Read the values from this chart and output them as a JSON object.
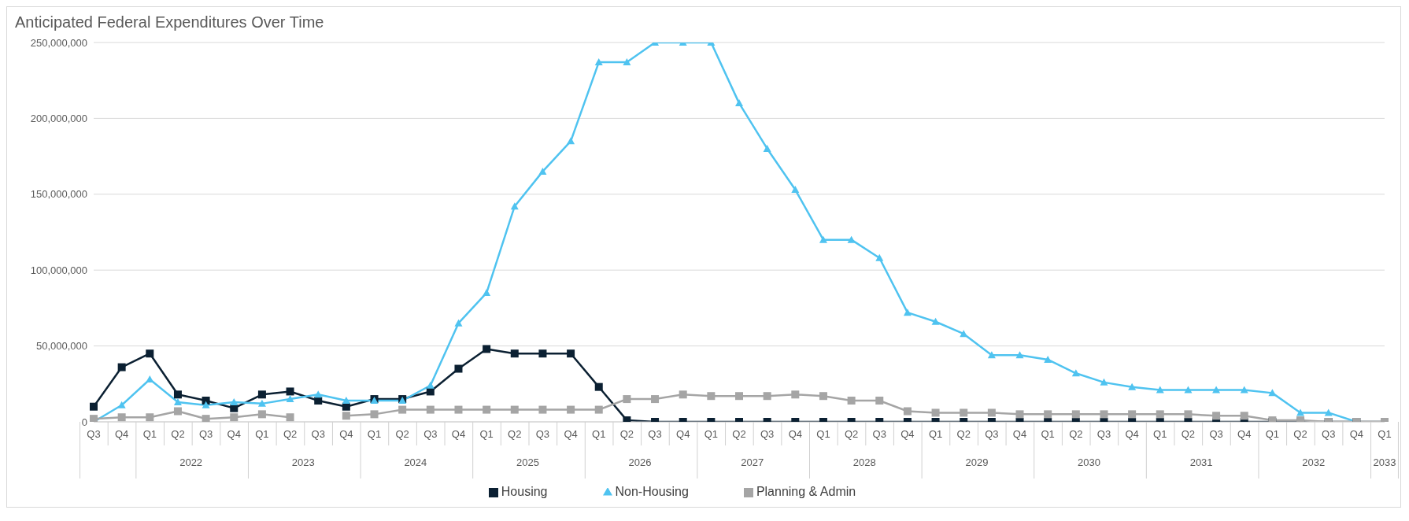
{
  "chart_data": {
    "type": "line",
    "title": "Anticipated Federal Expenditures Over Time",
    "categories": [
      "Q3",
      "Q4",
      "Q1",
      "Q2",
      "Q3",
      "Q4",
      "Q1",
      "Q2",
      "Q3",
      "Q4",
      "Q1",
      "Q2",
      "Q3",
      "Q4",
      "Q1",
      "Q2",
      "Q3",
      "Q4",
      "Q1",
      "Q2",
      "Q3",
      "Q4",
      "Q1",
      "Q2",
      "Q3",
      "Q4",
      "Q1",
      "Q2",
      "Q3",
      "Q4",
      "Q1",
      "Q2",
      "Q3",
      "Q4",
      "Q1",
      "Q2",
      "Q3",
      "Q4",
      "Q1",
      "Q2",
      "Q3",
      "Q4",
      "Q1",
      "Q2",
      "Q3",
      "Q4",
      "Q1"
    ],
    "annotations": [
      "2022",
      "2023",
      "2024",
      "2025",
      "2026",
      "2027",
      "2028",
      "2029",
      "2030",
      "2031",
      "2032",
      "2033"
    ],
    "series": [
      {
        "name": "Housing",
        "color": "#0b2032",
        "marker": "square",
        "values": [
          10000000,
          36000000,
          45000000,
          18000000,
          14000000,
          9000000,
          18000000,
          20000000,
          14000000,
          10000000,
          15000000,
          15000000,
          20000000,
          35000000,
          48000000,
          45000000,
          45000000,
          45000000,
          23000000,
          1000000,
          0,
          0,
          0,
          0,
          0,
          0,
          0,
          0,
          0,
          0,
          0,
          0,
          0,
          0,
          0,
          0,
          0,
          0,
          0,
          0,
          0,
          0,
          0,
          0,
          0,
          0,
          0
        ]
      },
      {
        "name": "Non-Housing",
        "color": "#4fc3f0",
        "marker": "triangle",
        "values": [
          0,
          11000000,
          28000000,
          13000000,
          11000000,
          13000000,
          12000000,
          15000000,
          18000000,
          14000000,
          14000000,
          14000000,
          24000000,
          65000000,
          85000000,
          142000000,
          165000000,
          185000000,
          237000000,
          237000000,
          250000000,
          250000000,
          250000000,
          210000000,
          180000000,
          153000000,
          120000000,
          120000000,
          108000000,
          72000000,
          66000000,
          58000000,
          44000000,
          44000000,
          41000000,
          32000000,
          26000000,
          23000000,
          21000000,
          21000000,
          21000000,
          21000000,
          19000000,
          6000000,
          6000000,
          0,
          null
        ]
      },
      {
        "name": "Planning & Admin",
        "color": "#a5a5a5",
        "marker": "square",
        "values": [
          2000000,
          3000000,
          3000000,
          7000000,
          2000000,
          3000000,
          5000000,
          3000000,
          null,
          4000000,
          5000000,
          8000000,
          8000000,
          8000000,
          8000000,
          8000000,
          8000000,
          8000000,
          8000000,
          15000000,
          15000000,
          18000000,
          17000000,
          17000000,
          17000000,
          18000000,
          17000000,
          14000000,
          14000000,
          7000000,
          6000000,
          6000000,
          6000000,
          5000000,
          5000000,
          5000000,
          5000000,
          5000000,
          5000000,
          5000000,
          4000000,
          4000000,
          1000000,
          1000000,
          0,
          0,
          0
        ]
      }
    ],
    "ylim": [
      0,
      250000000
    ],
    "yticks": [
      {
        "value": 0,
        "label": "0"
      },
      {
        "value": 50000000,
        "label": "50,000,000"
      },
      {
        "value": 100000000,
        "label": "100,000,000"
      },
      {
        "value": 150000000,
        "label": "150,000,000"
      },
      {
        "value": 200000000,
        "label": "200,000,000"
      },
      {
        "value": 250000000,
        "label": "250,000,000"
      }
    ],
    "grid": "y",
    "legend": "bottom"
  }
}
